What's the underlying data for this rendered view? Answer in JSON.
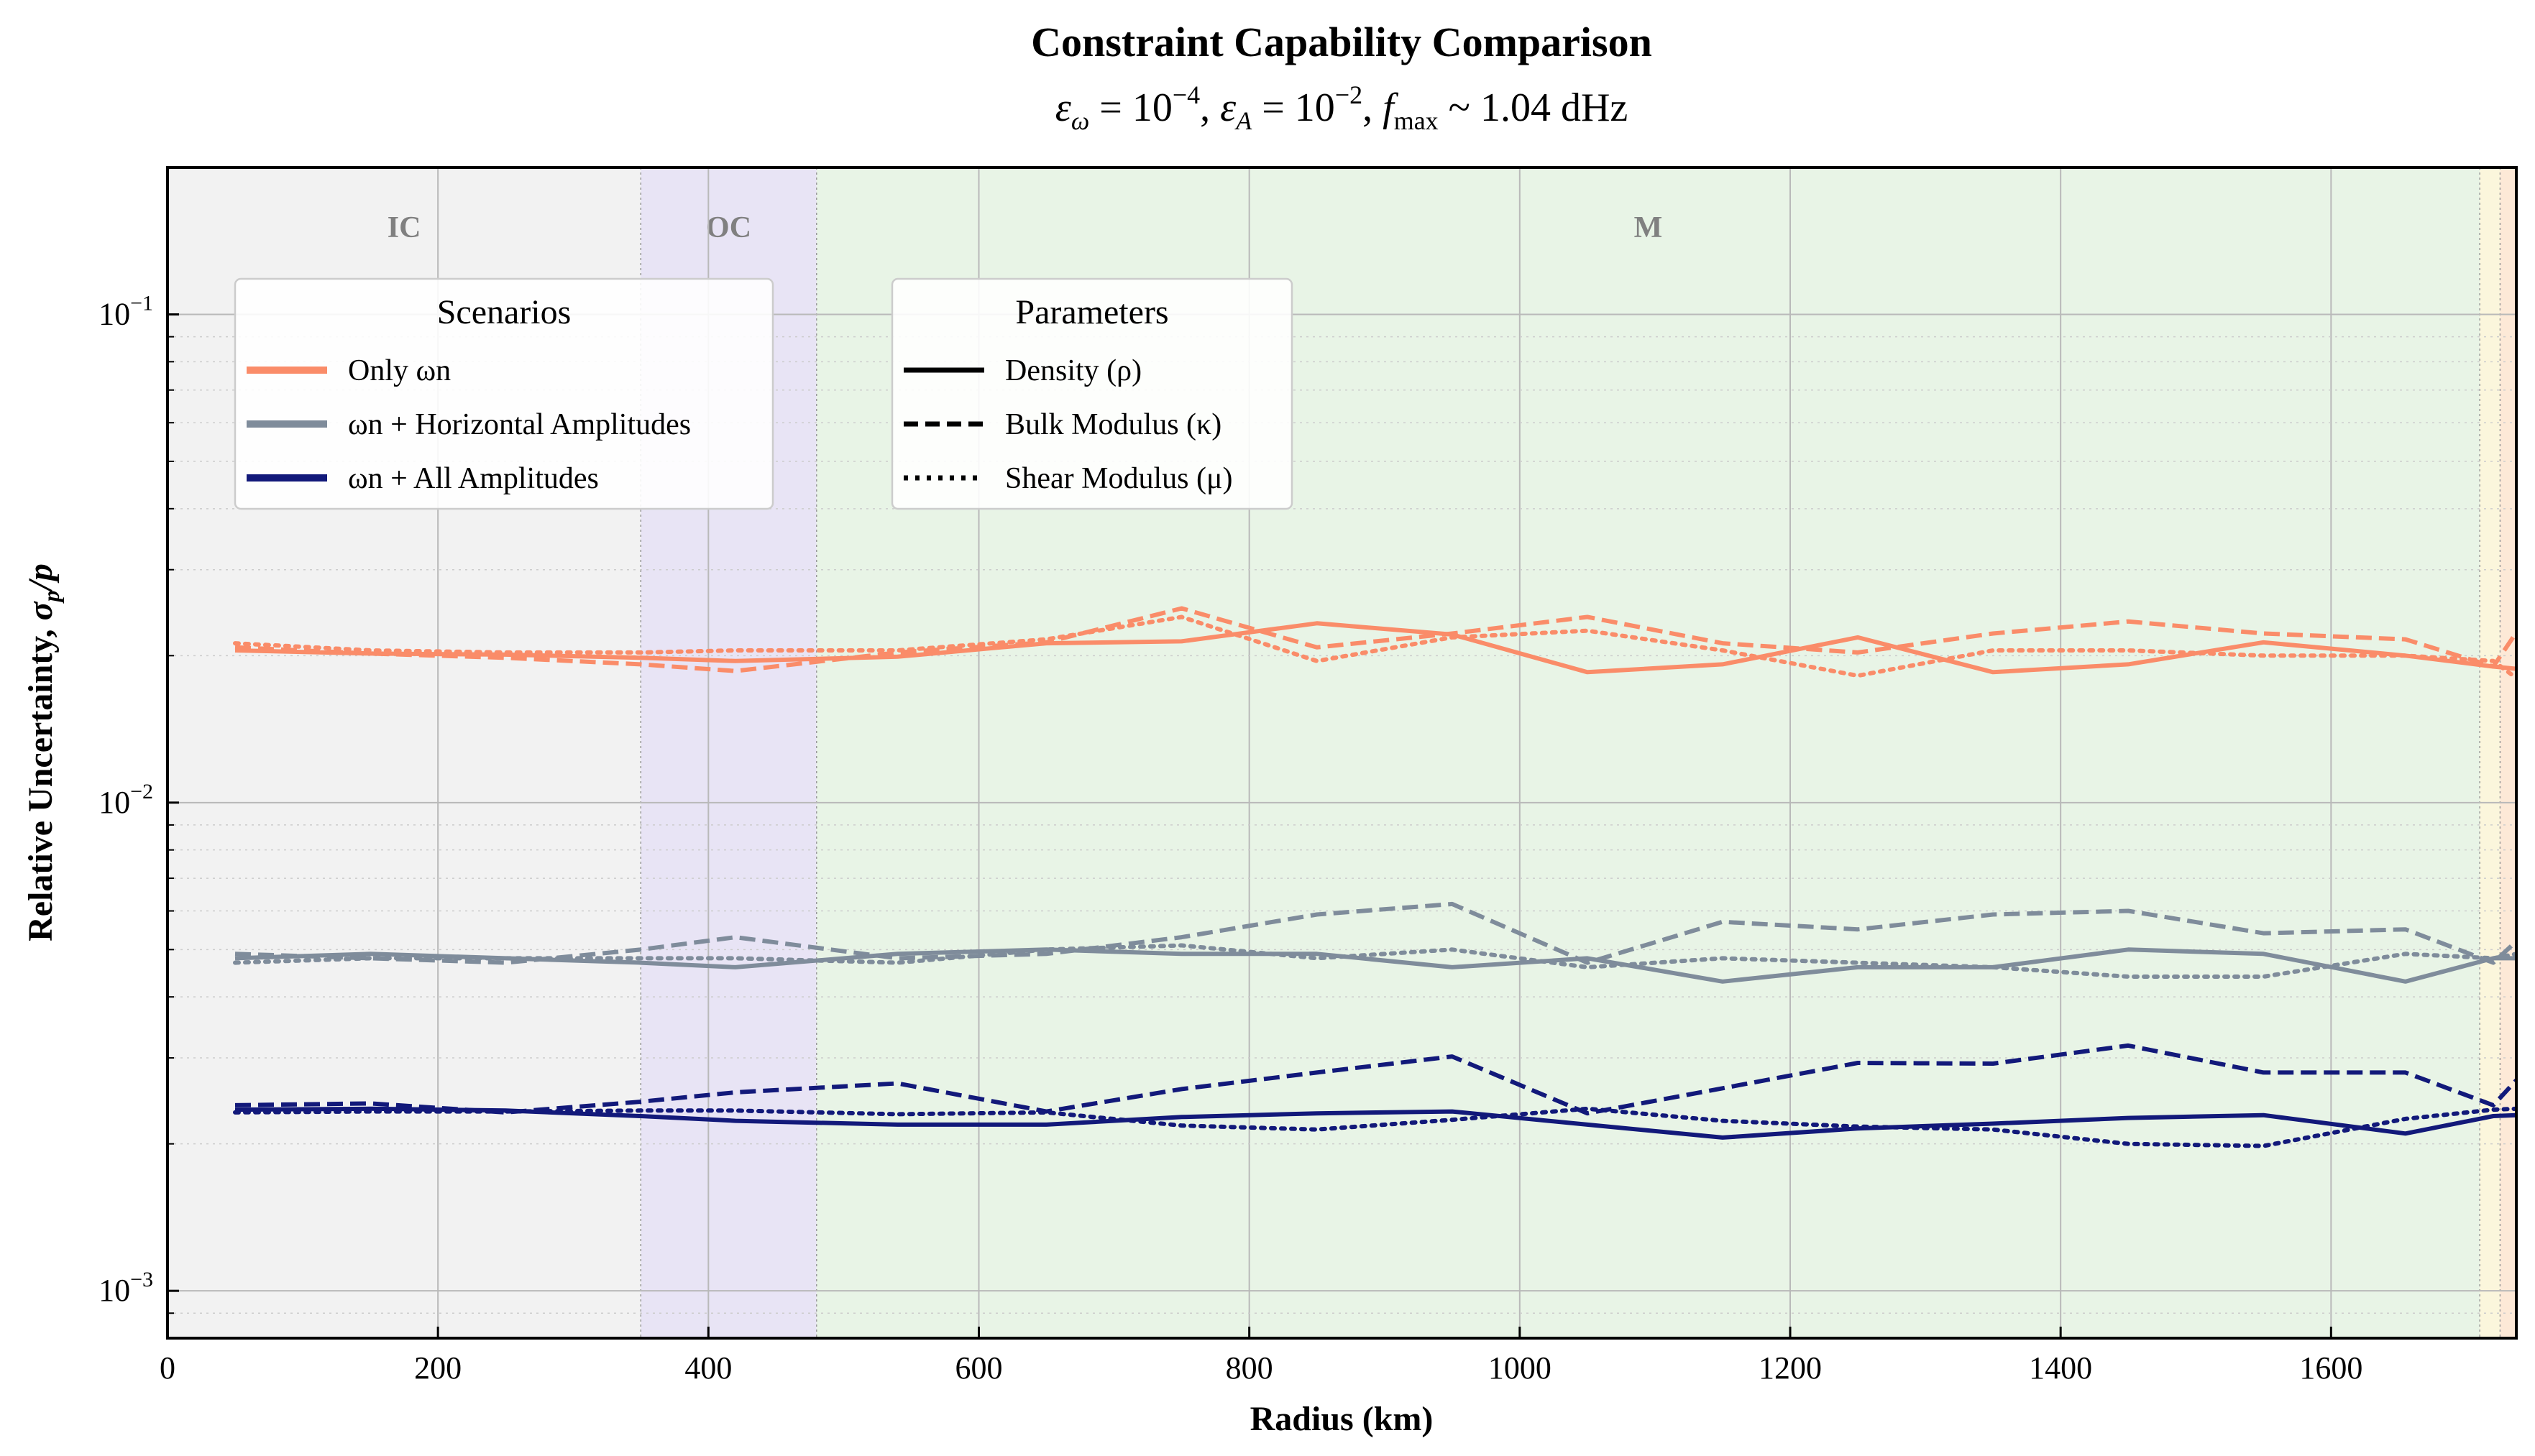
{
  "chart_data": {
    "type": "line",
    "title": "Constraint Capability Comparison",
    "subtitle": {
      "eps_omega_exp": "−4",
      "eps_A_exp": "−2",
      "fmax_value": "1.04 dHz"
    },
    "xlabel": "Radius (km)",
    "ylabel": "Relative Uncertainty, σp/p",
    "xlim": [
      0,
      1737
    ],
    "ylim": [
      0.0008,
      0.2
    ],
    "yscale": "log",
    "x_ticks": [
      0,
      200,
      400,
      600,
      800,
      1000,
      1200,
      1400,
      1600
    ],
    "y_ticks": [
      {
        "value": 0.001,
        "label_exp": "−3"
      },
      {
        "value": 0.01,
        "label_exp": "−2"
      },
      {
        "value": 0.1,
        "label_exp": "−1"
      }
    ],
    "grid": true,
    "regions": [
      {
        "label": "IC",
        "x_range": [
          0,
          350
        ],
        "color": "#f2f2f2"
      },
      {
        "label": "OC",
        "x_range": [
          350,
          480
        ],
        "color": "#e8e4f5"
      },
      {
        "label": "M",
        "x_range": [
          480,
          1710
        ],
        "color": "#e8f4e6"
      },
      {
        "label": "",
        "x_range": [
          1710,
          1725
        ],
        "color": "#fbf6dc"
      },
      {
        "label": "",
        "x_range": [
          1725,
          1737
        ],
        "color": "#fde9d7"
      }
    ],
    "x": [
      50,
      150,
      250,
      350,
      420,
      540,
      650,
      750,
      850,
      950,
      1050,
      1150,
      1250,
      1350,
      1450,
      1550,
      1655,
      1720,
      1737
    ],
    "series": [
      {
        "scenario": "Only ωn",
        "parameter": "Density (ρ)",
        "color": "#fa8c69",
        "style": "solid",
        "values": [
          0.0205,
          0.0202,
          0.0201,
          0.0198,
          0.0195,
          0.0199,
          0.0212,
          0.0214,
          0.0233,
          0.0221,
          0.0185,
          0.0192,
          0.0218,
          0.0185,
          0.0192,
          0.0213,
          0.02,
          0.019,
          0.0188
        ]
      },
      {
        "scenario": "Only ωn",
        "parameter": "Bulk Modulus (κ)",
        "color": "#fa8c69",
        "style": "dashed",
        "values": [
          0.0208,
          0.0202,
          0.0198,
          0.0192,
          0.0186,
          0.0203,
          0.0213,
          0.025,
          0.0208,
          0.0222,
          0.024,
          0.0212,
          0.0203,
          0.0222,
          0.0235,
          0.0222,
          0.0216,
          0.019,
          0.0223
        ]
      },
      {
        "scenario": "Only ωn",
        "parameter": "Shear Modulus (μ)",
        "color": "#fa8c69",
        "style": "dotted",
        "values": [
          0.0212,
          0.0205,
          0.0203,
          0.0203,
          0.0205,
          0.0205,
          0.0216,
          0.024,
          0.0195,
          0.0218,
          0.0225,
          0.0205,
          0.0182,
          0.0205,
          0.0205,
          0.02,
          0.02,
          0.0195,
          0.018
        ]
      },
      {
        "scenario": "ωn + Horizontal Amplitudes",
        "parameter": "Density (ρ)",
        "color": "#7f8c9b",
        "style": "solid",
        "values": [
          0.0048,
          0.0049,
          0.0048,
          0.0047,
          0.0046,
          0.0049,
          0.005,
          0.0049,
          0.0049,
          0.0046,
          0.0048,
          0.0043,
          0.0046,
          0.0046,
          0.005,
          0.0049,
          0.0043,
          0.0048,
          0.0048
        ]
      },
      {
        "scenario": "ωn + Horizontal Amplitudes",
        "parameter": "Bulk Modulus (κ)",
        "color": "#7f8c9b",
        "style": "dashed",
        "values": [
          0.0049,
          0.0048,
          0.0047,
          0.005,
          0.0053,
          0.0048,
          0.0049,
          0.0053,
          0.0059,
          0.0062,
          0.0047,
          0.0057,
          0.0055,
          0.0059,
          0.006,
          0.0054,
          0.0055,
          0.0047,
          0.0052
        ]
      },
      {
        "scenario": "ωn + Horizontal Amplitudes",
        "parameter": "Shear Modulus (μ)",
        "color": "#7f8c9b",
        "style": "dotted",
        "values": [
          0.0047,
          0.0048,
          0.0048,
          0.0048,
          0.0048,
          0.0047,
          0.005,
          0.0051,
          0.0048,
          0.005,
          0.0046,
          0.0048,
          0.0047,
          0.0046,
          0.0044,
          0.0044,
          0.0049,
          0.0048,
          0.0049
        ]
      },
      {
        "scenario": "ωn + All Amplitudes",
        "parameter": "Density (ρ)",
        "color": "#12197a",
        "style": "solid",
        "values": [
          0.00235,
          0.00236,
          0.00234,
          0.00228,
          0.00223,
          0.00219,
          0.00219,
          0.00227,
          0.00231,
          0.00233,
          0.00219,
          0.00206,
          0.00215,
          0.0022,
          0.00226,
          0.00229,
          0.0021,
          0.00228,
          0.00229
        ]
      },
      {
        "scenario": "ωn + All Amplitudes",
        "parameter": "Bulk Modulus (κ)",
        "color": "#12197a",
        "style": "dashed",
        "values": [
          0.0024,
          0.00242,
          0.00232,
          0.00244,
          0.00255,
          0.00266,
          0.00233,
          0.00259,
          0.0028,
          0.00302,
          0.00231,
          0.0026,
          0.00293,
          0.00292,
          0.00318,
          0.0028,
          0.0028,
          0.0024,
          0.0027
        ]
      },
      {
        "scenario": "ωn + All Amplitudes",
        "parameter": "Shear Modulus (μ)",
        "color": "#12197a",
        "style": "dotted",
        "values": [
          0.00232,
          0.00233,
          0.00233,
          0.00234,
          0.00234,
          0.0023,
          0.00232,
          0.00218,
          0.00214,
          0.00224,
          0.00236,
          0.00223,
          0.00217,
          0.00214,
          0.002,
          0.00198,
          0.00225,
          0.00235,
          0.00236
        ]
      }
    ],
    "legends": {
      "scenarios": {
        "title": "Scenarios",
        "placement": "upper-left",
        "entries": [
          {
            "label": "Only ωn",
            "color": "#fa8c69"
          },
          {
            "label": "ωn + Horizontal Amplitudes",
            "color": "#7f8c9b"
          },
          {
            "label": "ωn + All Amplitudes",
            "color": "#12197a"
          }
        ]
      },
      "parameters": {
        "title": "Parameters",
        "placement": "upper-left",
        "entries": [
          {
            "label": "Density (ρ)",
            "style": "solid"
          },
          {
            "label": "Bulk Modulus (κ)",
            "style": "dashed"
          },
          {
            "label": "Shear Modulus (μ)",
            "style": "dotted"
          }
        ]
      }
    }
  }
}
